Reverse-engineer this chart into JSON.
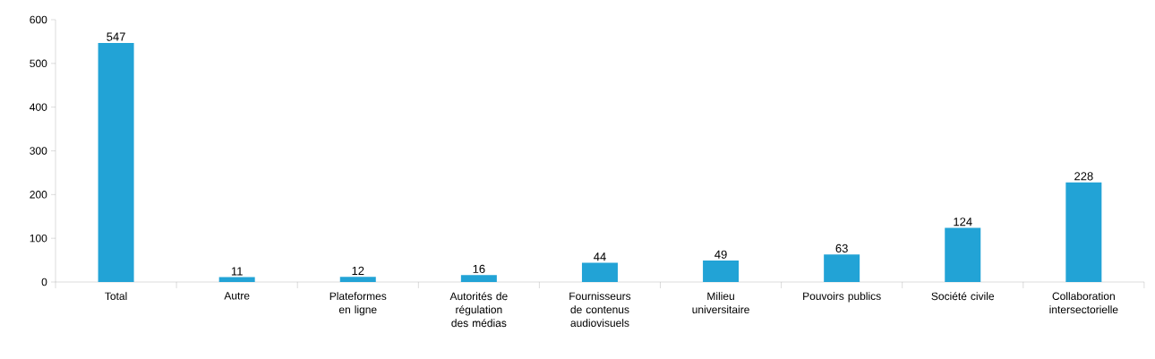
{
  "chart_data": {
    "type": "bar",
    "categories": [
      "Total",
      "Autre",
      "Plateformes en ligne",
      "Autorités de régulation des médias",
      "Fournisseurs de contenus audiovisuels",
      "Milieu universitaire",
      "Pouvoirs publics",
      "Société civile",
      "Collaboration intersectorielle"
    ],
    "values": [
      547,
      11,
      12,
      16,
      44,
      49,
      63,
      124,
      228
    ],
    "color": "#22a3d6",
    "ylim": [
      0,
      600
    ],
    "yticks": [
      0,
      100,
      200,
      300,
      400,
      500,
      600
    ],
    "data_labels": true
  }
}
